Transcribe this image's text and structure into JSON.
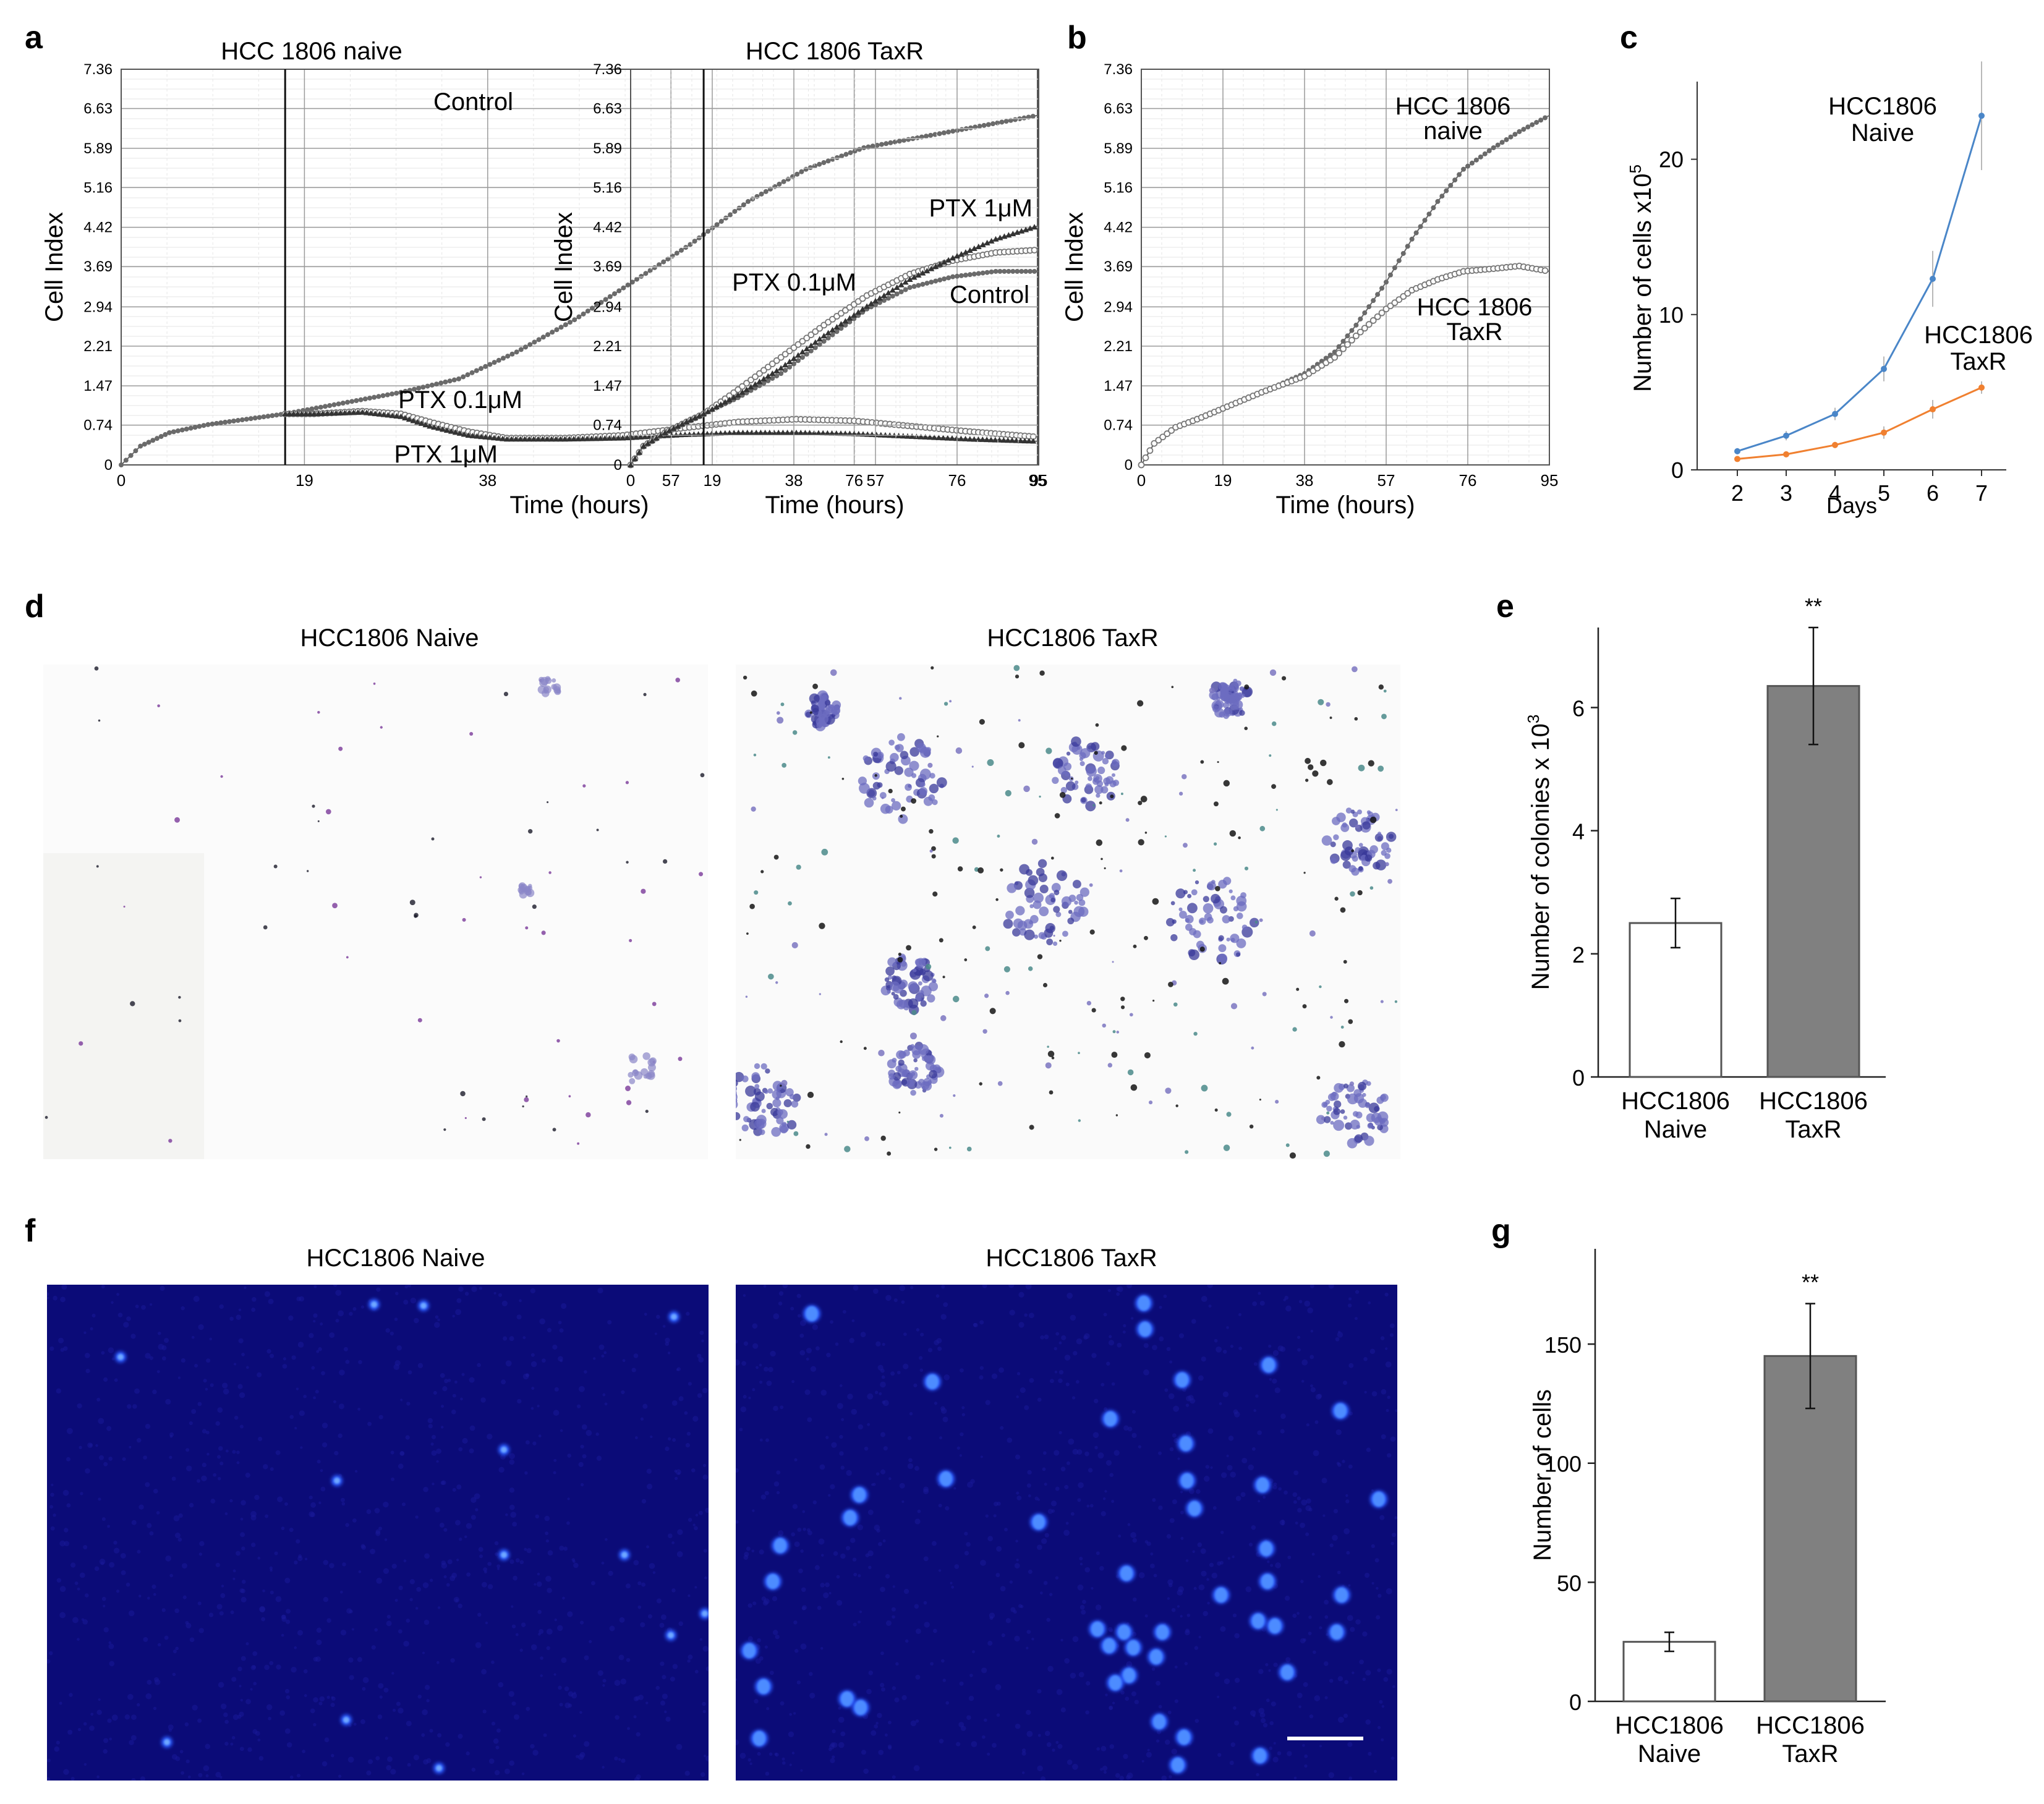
{
  "colors": {
    "gray_bar": "#808080",
    "naive_line": "#4a86c8",
    "taxr_line": "#f08030",
    "fluor_bg": "#0b0b7a",
    "nucleus": "#2a5cff"
  },
  "panels": {
    "a": {
      "label": "a"
    },
    "b": {
      "label": "b"
    },
    "c": {
      "label": "c"
    },
    "d": {
      "label": "d",
      "image_titles": [
        "HCC1806 Naive",
        "HCC1806 TaxR"
      ]
    },
    "e": {
      "label": "e"
    },
    "f": {
      "label": "f",
      "image_titles": [
        "HCC1806 Naive",
        "HCC1806 TaxR"
      ]
    },
    "g": {
      "label": "g"
    }
  },
  "chart_data": [
    {
      "id": "a1",
      "type": "line",
      "title": "HCC 1806 naive",
      "xlabel": "Time (hours)",
      "ylabel": "Cell Index",
      "x_ticks": [
        "0",
        "19",
        "38",
        "57",
        "76",
        "95"
      ],
      "y_ticks": [
        "0",
        "0.74",
        "1.47",
        "2.21",
        "2.94",
        "3.69",
        "4.42",
        "5.16",
        "5.89",
        "6.63",
        "7.36"
      ],
      "xlim": [
        0,
        95
      ],
      "ylim": [
        0,
        7.36
      ],
      "grid": true,
      "vline_at": 17,
      "series": [
        {
          "name": "Control",
          "x": [
            0,
            2,
            5,
            9,
            13,
            17,
            23,
            29,
            35,
            41,
            47,
            53,
            59,
            65,
            71,
            77,
            83,
            89,
            95
          ],
          "values": [
            0,
            0.35,
            0.6,
            0.75,
            0.85,
            0.95,
            1.15,
            1.35,
            1.6,
            2.1,
            2.7,
            3.4,
            4.1,
            4.9,
            5.5,
            5.9,
            6.1,
            6.3,
            6.5
          ]
        },
        {
          "name": "PTX 0.1μM",
          "x": [
            17,
            20,
            25,
            29,
            32,
            36,
            40,
            46,
            52,
            58,
            64,
            70,
            76,
            82,
            88,
            95
          ],
          "values": [
            0.95,
            0.95,
            1.0,
            0.95,
            0.8,
            0.62,
            0.5,
            0.5,
            0.55,
            0.68,
            0.8,
            0.85,
            0.82,
            0.72,
            0.62,
            0.52
          ]
        },
        {
          "name": "PTX 1μM",
          "x": [
            17,
            20,
            25,
            29,
            32,
            36,
            40,
            46,
            52,
            58,
            64,
            70,
            76,
            82,
            88,
            95
          ],
          "values": [
            0.95,
            0.95,
            0.98,
            0.9,
            0.72,
            0.55,
            0.48,
            0.48,
            0.5,
            0.56,
            0.6,
            0.6,
            0.58,
            0.53,
            0.48,
            0.44
          ]
        }
      ],
      "annotations": [
        "Control",
        "PTX 0.1μM",
        "PTX 1μM"
      ]
    },
    {
      "id": "a2",
      "type": "line",
      "title": "HCC 1806 TaxR",
      "xlabel": "Time (hours)",
      "ylabel": "Cell Index",
      "x_ticks": [
        "0",
        "19",
        "38",
        "57",
        "76",
        "95"
      ],
      "y_ticks": [
        "0",
        "0.74",
        "1.47",
        "2.21",
        "2.94",
        "3.69",
        "4.42",
        "5.16",
        "5.89",
        "6.63",
        "7.36"
      ],
      "xlim": [
        0,
        95
      ],
      "ylim": [
        0,
        7.36
      ],
      "grid": true,
      "vline_at": 17,
      "series": [
        {
          "name": "Control",
          "x": [
            0,
            3,
            8,
            13,
            17,
            25,
            35,
            45,
            55,
            65,
            75,
            85,
            95
          ],
          "values": [
            0,
            0.35,
            0.6,
            0.8,
            0.95,
            1.25,
            1.7,
            2.3,
            2.9,
            3.3,
            3.5,
            3.6,
            3.6
          ]
        },
        {
          "name": "PTX 0.1μM",
          "x": [
            0,
            3,
            8,
            13,
            17,
            25,
            35,
            45,
            55,
            65,
            75,
            85,
            95
          ],
          "values": [
            0,
            0.35,
            0.6,
            0.8,
            0.95,
            1.4,
            2.0,
            2.6,
            3.15,
            3.55,
            3.8,
            3.95,
            4.0
          ]
        },
        {
          "name": "PTX 1μM",
          "x": [
            0,
            3,
            8,
            13,
            17,
            25,
            35,
            45,
            55,
            65,
            75,
            85,
            95
          ],
          "values": [
            0,
            0.35,
            0.6,
            0.8,
            0.95,
            1.3,
            1.8,
            2.4,
            2.95,
            3.45,
            3.85,
            4.2,
            4.45
          ]
        }
      ],
      "annotations": [
        "PTX 1μM",
        "PTX 0.1μM",
        "Control"
      ]
    },
    {
      "id": "b",
      "type": "line",
      "title": "",
      "xlabel": "Time (hours)",
      "ylabel": "Cell Index",
      "x_ticks": [
        "0",
        "19",
        "38",
        "57",
        "76",
        "95"
      ],
      "y_ticks": [
        "0",
        "0.74",
        "1.47",
        "2.21",
        "2.94",
        "3.69",
        "4.42",
        "5.16",
        "5.89",
        "6.63",
        "7.36"
      ],
      "xlim": [
        0,
        95
      ],
      "ylim": [
        0,
        7.36
      ],
      "grid": true,
      "series": [
        {
          "name": "HCC 1806 naive",
          "x": [
            0,
            3,
            8,
            13,
            19,
            28,
            38,
            45,
            50,
            57,
            63,
            69,
            75,
            82,
            88,
            95
          ],
          "values": [
            0,
            0.4,
            0.7,
            0.85,
            1.05,
            1.35,
            1.7,
            2.1,
            2.6,
            3.4,
            4.2,
            4.9,
            5.5,
            5.9,
            6.2,
            6.5
          ]
        },
        {
          "name": "HCC 1806 TaxR",
          "x": [
            0,
            3,
            8,
            13,
            19,
            28,
            38,
            45,
            50,
            57,
            63,
            69,
            75,
            82,
            88,
            95
          ],
          "values": [
            0,
            0.4,
            0.7,
            0.85,
            1.05,
            1.35,
            1.65,
            2.0,
            2.4,
            2.9,
            3.25,
            3.45,
            3.6,
            3.65,
            3.7,
            3.6
          ]
        }
      ],
      "annotations": [
        "HCC 1806",
        "naive",
        "HCC 1806",
        "TaxR"
      ]
    },
    {
      "id": "c",
      "type": "line",
      "xlabel": "Days",
      "ylabel": "Number of cells x10",
      "ylabel_sup": "5",
      "categories": [
        "2",
        "3",
        "4",
        "5",
        "6",
        "7"
      ],
      "y_ticks": [
        "0",
        "10",
        "20"
      ],
      "ylim": [
        0,
        25
      ],
      "series": [
        {
          "name": "HCC1806 Naive",
          "values": [
            1.2,
            2.2,
            3.6,
            6.5,
            12.3,
            22.8
          ],
          "errors": [
            0.2,
            0.3,
            0.4,
            0.8,
            1.8,
            3.5
          ]
        },
        {
          "name": "HCC1806 TaxR",
          "values": [
            0.7,
            1.0,
            1.6,
            2.4,
            3.9,
            5.3
          ],
          "errors": [
            0.1,
            0.15,
            0.2,
            0.4,
            0.6,
            0.4
          ]
        }
      ],
      "annotations": [
        "HCC1806",
        "Naive",
        "HCC1806",
        "TaxR"
      ]
    },
    {
      "id": "e",
      "type": "bar",
      "ylabel": "Number of colonies x 10",
      "ylabel_sup": "3",
      "categories": [
        [
          "HCC1806",
          "Naive"
        ],
        [
          "HCC1806",
          "TaxR"
        ]
      ],
      "values": [
        2.5,
        6.35
      ],
      "errors": [
        0.4,
        0.95
      ],
      "y_ticks": [
        "0",
        "2",
        "4",
        "6"
      ],
      "ylim": [
        0,
        7.3
      ],
      "significance": "**"
    },
    {
      "id": "g",
      "type": "bar",
      "ylabel": "Number of cells",
      "categories": [
        [
          "HCC1806",
          "Naive"
        ],
        [
          "HCC1806",
          "TaxR"
        ]
      ],
      "values": [
        25,
        145
      ],
      "errors": [
        4,
        22
      ],
      "y_ticks": [
        "0",
        "50",
        "100",
        "150"
      ],
      "ylim": [
        0,
        190
      ],
      "significance": "**"
    }
  ]
}
